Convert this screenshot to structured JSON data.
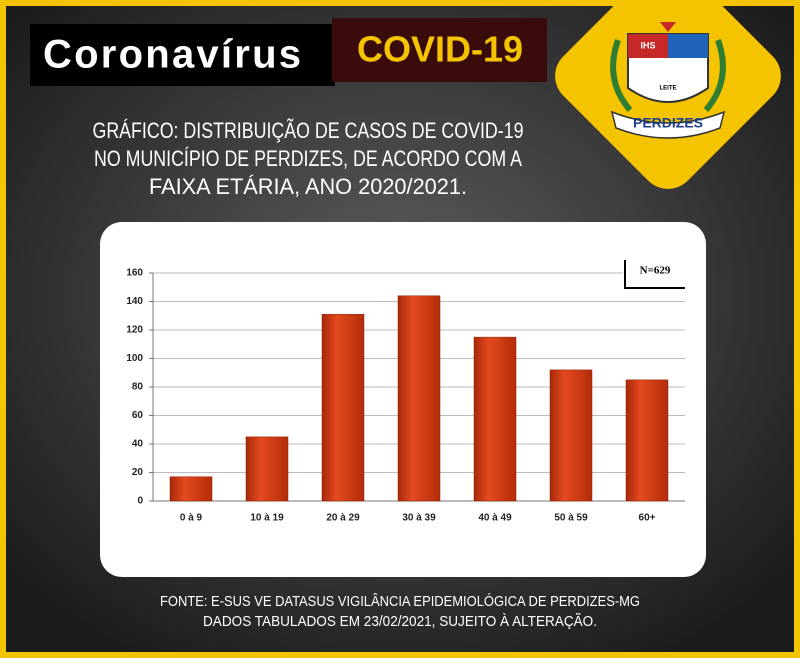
{
  "header": {
    "title": "Coronavírus",
    "badge": "COVID-19",
    "logo": {
      "top": "IHS",
      "bottom": "LEITE",
      "name": "PERDIZES"
    }
  },
  "heading": [
    "GRÁFICO: DISTRIBUIÇÃO DE CASOS DE COVID-19",
    "NO MUNICÍPIO DE PERDIZES, DE ACORDO COM A",
    "FAIXA ETÁRIA, ANO 2020/2021."
  ],
  "chart_data": {
    "type": "bar",
    "categories": [
      "0 à 9",
      "10 à 19",
      "20 à 29",
      "30 à 39",
      "40 à 49",
      "50 à 59",
      "60+"
    ],
    "values": [
      17,
      45,
      131,
      144,
      115,
      92,
      85
    ],
    "color": "#d43a12",
    "ylim": [
      0,
      160
    ],
    "yticks": [
      0,
      20,
      40,
      60,
      80,
      100,
      120,
      140,
      160
    ],
    "grid": true,
    "annotation": "N=629"
  },
  "footer": [
    "FONTE: E-SUS VE DATASUS VIGILÂNCIA EPIDEMIOLÓGICA DE PERDIZES-MG",
    "DADOS TABULADOS EM 23/02/2021, SUJEITO À ALTERAÇÃO."
  ]
}
